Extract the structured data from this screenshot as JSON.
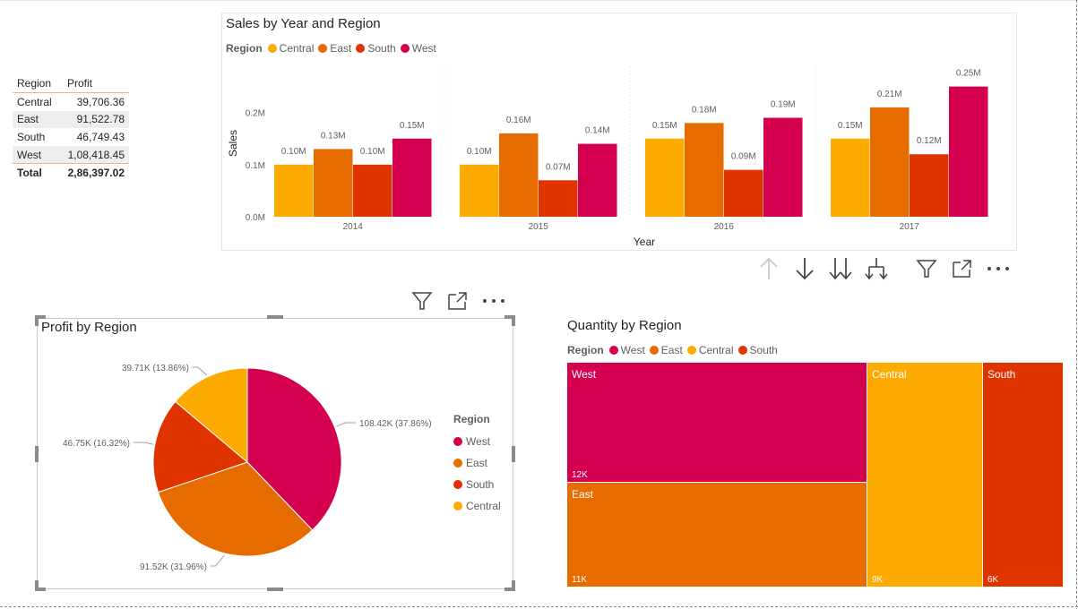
{
  "table": {
    "headers": [
      "Region",
      "Profit"
    ],
    "rows": [
      {
        "region": "Central",
        "profit": "39,706.36"
      },
      {
        "region": "East",
        "profit": "91,522.78"
      },
      {
        "region": "South",
        "profit": "46,749.43"
      },
      {
        "region": "West",
        "profit": "1,08,418.45"
      }
    ],
    "total_label": "Total",
    "total_value": "2,86,397.02"
  },
  "colors": {
    "Central": "#fdab00",
    "East": "#e66c00",
    "South": "#df3300",
    "West": "#d4004f"
  },
  "icons": [
    "arrow-up-icon",
    "arrow-down-icon",
    "double-arrow-down-icon",
    "expand-hierarchy-icon",
    "filter-icon",
    "focus-mode-icon",
    "more-options-icon"
  ],
  "chart_data": [
    {
      "type": "bar",
      "title": "Sales by Year and Region",
      "legend_title": "Region",
      "xlabel": "Year",
      "ylabel": "Sales",
      "categories": [
        "2014",
        "2015",
        "2016",
        "2017"
      ],
      "yticks": [
        "0.0M",
        "0.1M",
        "0.2M"
      ],
      "ylim": [
        0,
        0.27
      ],
      "series": [
        {
          "name": "Central",
          "values": [
            0.1,
            0.1,
            0.15,
            0.15
          ],
          "labels": [
            "0.10M",
            "0.10M",
            "0.15M",
            "0.15M"
          ]
        },
        {
          "name": "East",
          "values": [
            0.13,
            0.16,
            0.18,
            0.21
          ],
          "labels": [
            "0.13M",
            "0.16M",
            "0.18M",
            "0.21M"
          ]
        },
        {
          "name": "South",
          "values": [
            0.1,
            0.07,
            0.09,
            0.12
          ],
          "labels": [
            "0.10M",
            "0.07M",
            "0.09M",
            "0.12M"
          ]
        },
        {
          "name": "West",
          "values": [
            0.15,
            0.14,
            0.19,
            0.25
          ],
          "labels": [
            "0.15M",
            "0.14M",
            "0.19M",
            "0.25M"
          ]
        }
      ]
    },
    {
      "type": "pie",
      "title": "Profit by Region",
      "legend_title": "Region",
      "slices": [
        {
          "name": "West",
          "value": 108.42,
          "label": "108.42K (37.86%)"
        },
        {
          "name": "East",
          "value": 91.52,
          "label": "91.52K (31.96%)"
        },
        {
          "name": "South",
          "value": 46.75,
          "label": "46.75K (16.32%)"
        },
        {
          "name": "Central",
          "value": 39.71,
          "label": "39.71K (13.86%)"
        }
      ]
    },
    {
      "type": "treemap",
      "title": "Quantity by Region",
      "legend_title": "Region",
      "items": [
        {
          "name": "West",
          "value": 12,
          "label": "12K"
        },
        {
          "name": "East",
          "value": 11,
          "label": "11K"
        },
        {
          "name": "Central",
          "value": 9,
          "label": "9K"
        },
        {
          "name": "South",
          "value": 6,
          "label": "6K"
        }
      ]
    }
  ]
}
